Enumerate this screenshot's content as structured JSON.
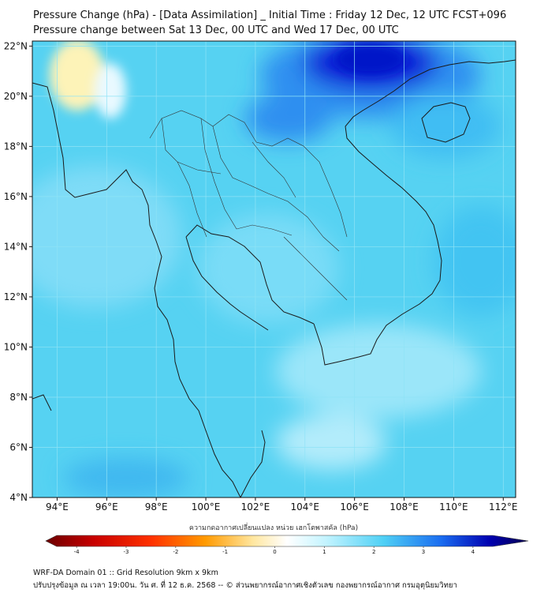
{
  "title_line1": "Pressure Change (hPa) - [Data Assimilation] _ Initial Time : Friday 12 Dec, 12 UTC FCST+096",
  "title_line2": "Pressure change between Sat 13 Dec, 00 UTC and Wed 17 Dec, 00 UTC",
  "map": {
    "lat_ticks": [
      "22°N",
      "20°N",
      "18°N",
      "16°N",
      "14°N",
      "12°N",
      "10°N",
      "8°N",
      "6°N",
      "4°N"
    ],
    "lon_ticks": [
      "94°E",
      "96°E",
      "98°E",
      "100°E",
      "102°E",
      "104°E",
      "106°E",
      "108°E",
      "110°E",
      "112°E"
    ],
    "lat_values": [
      22,
      20,
      18,
      16,
      14,
      12,
      10,
      8,
      6,
      4
    ],
    "lon_values": [
      94,
      96,
      98,
      100,
      102,
      104,
      106,
      108,
      110,
      112
    ],
    "extent": {
      "lon_min": 93.0,
      "lon_max": 112.5,
      "lat_min": 4.0,
      "lat_max": 22.2
    },
    "field_colors": {
      "base": "#56d2f2",
      "strong_drop": "#0a1fd8",
      "rise": "#fdf3b8"
    }
  },
  "colorbar": {
    "title": "ความกดอากาศเปลี่ยนแปลง หน่วย เฮกโตพาสคัล (hPa)",
    "ticks": [
      "-4",
      "-3",
      "-2",
      "-1",
      "0",
      "1",
      "2",
      "3",
      "4"
    ],
    "tick_values": [
      -4,
      -3,
      -2,
      -1,
      0,
      1,
      2,
      3,
      4
    ],
    "min": -4.4,
    "max": 4.4,
    "colors": [
      "#6b0000",
      "#c80000",
      "#ff2a00",
      "#ff9a00",
      "#ffe08a",
      "#ffffff",
      "#bff3ff",
      "#4fd0f5",
      "#1a6cf0",
      "#0000a0",
      "#070050"
    ]
  },
  "footer_line1": "WRF-DA Domain 01 :: Grid Resolution 9km x 9km",
  "footer_line2": "ปรับปรุงข้อมูล ณ เวลา 19:00น. วัน ศ. ที่ 12 ธ.ค. 2568 -- © ส่วนพยากรณ์อากาศเชิงตัวเลข กองพยากรณ์อากาศ กรมอุตุนิยมวิทยา"
}
